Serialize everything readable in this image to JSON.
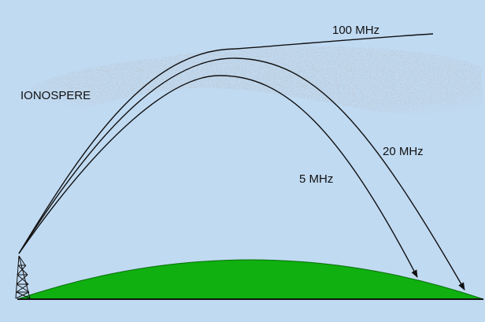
{
  "labels": {
    "ionosphere": "IONOSPERE",
    "freq_high": "100 MHz",
    "freq_mid": "20 MHz",
    "freq_low": "5 MHz"
  },
  "colors": {
    "sky": "#c0daf2",
    "ground": "#0fb00f",
    "ionosphere_speckle": "#8a9aa8",
    "ray": "#111111"
  }
}
